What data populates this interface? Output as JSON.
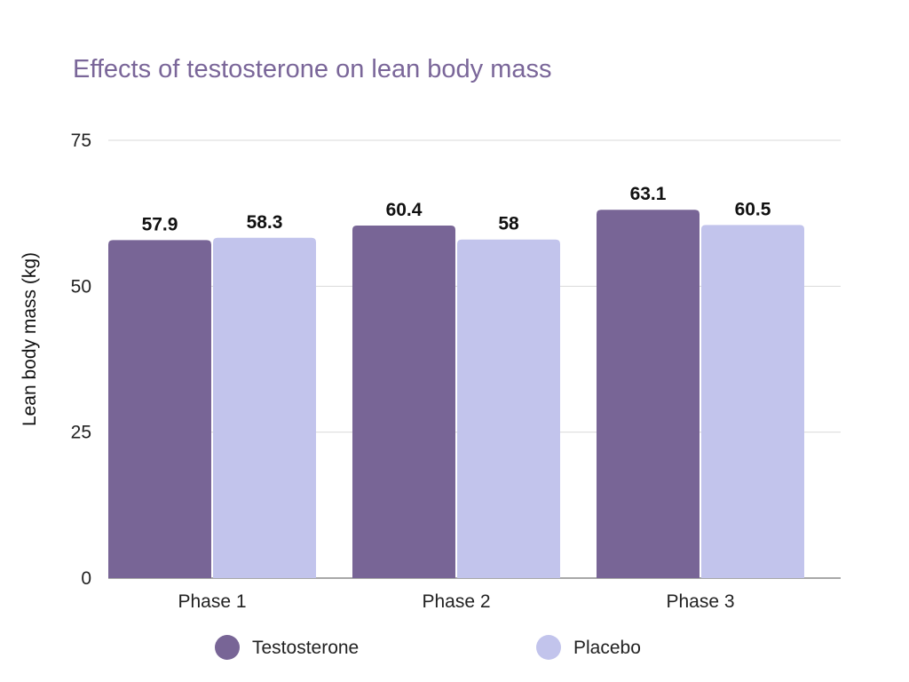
{
  "chart_data": {
    "type": "bar",
    "title": "Effects of testosterone on lean body mass",
    "xlabel": "",
    "ylabel": "Lean body mass (kg)",
    "categories": [
      "Phase 1",
      "Phase 2",
      "Phase 3"
    ],
    "series": [
      {
        "name": "Testosterone",
        "values": [
          57.9,
          60.4,
          63.1
        ],
        "color": "#786596"
      },
      {
        "name": "Placebo",
        "values": [
          58.3,
          58,
          60.5
        ],
        "color": "#c2c4ec"
      }
    ],
    "value_labels": [
      [
        "57.9",
        "60.4",
        "63.1"
      ],
      [
        "58.3",
        "58",
        "60.5"
      ]
    ],
    "ylim": [
      0,
      75
    ],
    "yticks": [
      0,
      25,
      50,
      75
    ],
    "ytick_labels": [
      "0",
      "25",
      "50",
      "75"
    ],
    "grid": true,
    "legend_position": "bottom"
  },
  "colors": {
    "title": "#7a6699",
    "text": "#222222",
    "grid": "#d9d9d9"
  }
}
